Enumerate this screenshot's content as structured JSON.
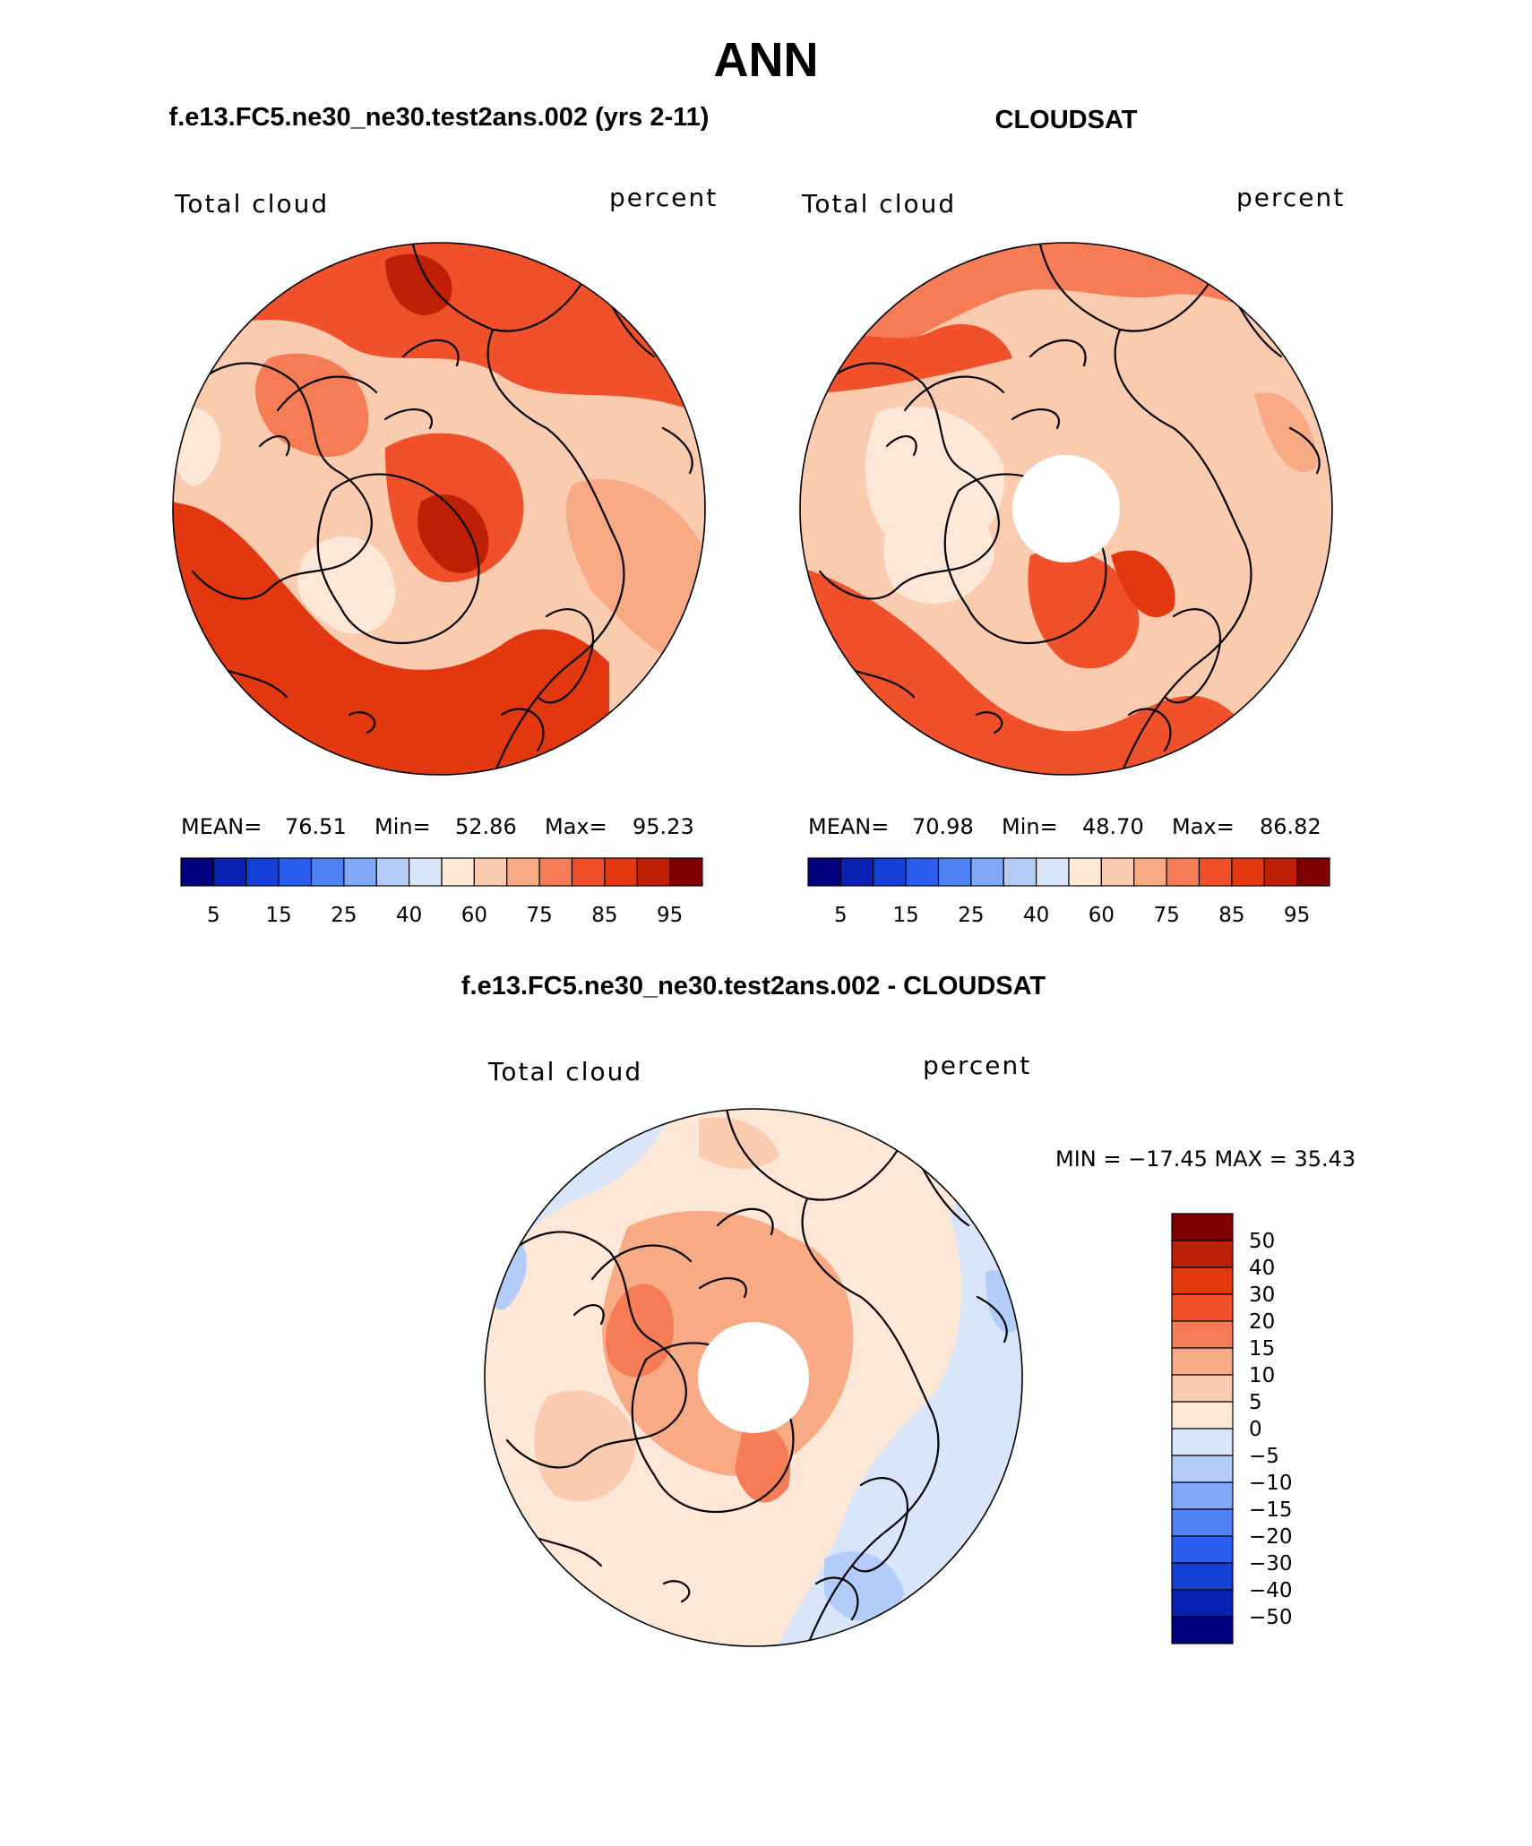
{
  "title": "ANN",
  "panels": [
    {
      "case_name": "f.e13.FC5.ne30_ne30.test2ans.002 (yrs 2-11)",
      "field": "Total cloud",
      "units": "percent",
      "mean_label": "MEAN=",
      "mean_value": "76.51",
      "min_label": "Min=",
      "min_value": "52.86",
      "max_label": "Max=",
      "max_value": "95.23",
      "polar_hole": false,
      "colorbar_ticks": [
        "5",
        "15",
        "25",
        "40",
        "60",
        "75",
        "85",
        "95"
      ]
    },
    {
      "case_name": "CLOUDSAT",
      "field": "Total cloud",
      "units": "percent",
      "mean_label": "MEAN=",
      "mean_value": "70.98",
      "min_label": "Min=",
      "min_value": "48.70",
      "max_label": "Max=",
      "max_value": "86.82",
      "polar_hole": true,
      "colorbar_ticks": [
        "5",
        "15",
        "25",
        "40",
        "60",
        "75",
        "85",
        "95"
      ]
    }
  ],
  "diff_panel": {
    "title": "f.e13.FC5.ne30_ne30.test2ans.002 - CLOUDSAT",
    "field": "Total cloud",
    "units": "percent",
    "min_max_text": "MIN = −17.45 MAX =   35.43",
    "polar_hole": true,
    "colorbar_labels": [
      "50",
      "40",
      "30",
      "20",
      "15",
      "10",
      "5",
      "0",
      "−5",
      "−10",
      "−15",
      "−20",
      "−30",
      "−40",
      "−50"
    ]
  },
  "colors": {
    "abs_scale": [
      "#000080",
      "#0a22b4",
      "#1540d8",
      "#2a5ef0",
      "#4f82f5",
      "#80a8f8",
      "#b3ccfa",
      "#d9e6fa",
      "#fde8d8",
      "#fbcbb0",
      "#f8aa85",
      "#f57c55",
      "#f0502a",
      "#e3380f",
      "#bf1f05",
      "#800000"
    ],
    "diff_scale": [
      "#800000",
      "#bf1f05",
      "#e3380f",
      "#f0502a",
      "#f57c55",
      "#f8aa85",
      "#fbcbb0",
      "#fde8d8",
      "#d9e6fa",
      "#b3ccfa",
      "#80a8f8",
      "#4f82f5",
      "#2a5ef0",
      "#1540d8",
      "#0a22b4",
      "#000080"
    ]
  },
  "chart_data": {
    "type": "heatmap",
    "title": "ANN",
    "projection": "north polar stereographic",
    "variable": "Total cloud",
    "units": "percent",
    "abs_contour_levels": [
      5,
      10,
      15,
      20,
      25,
      30,
      40,
      50,
      60,
      70,
      75,
      80,
      85,
      90,
      95
    ],
    "diff_contour_levels": [
      -50,
      -40,
      -30,
      -20,
      -15,
      -10,
      -5,
      0,
      5,
      10,
      15,
      20,
      30,
      40,
      50
    ],
    "series": [
      {
        "name": "f.e13.FC5.ne30_ne30.test2ans.002 (yrs 2-11)",
        "mean": 76.51,
        "min": 52.86,
        "max": 95.23
      },
      {
        "name": "CLOUDSAT",
        "mean": 70.98,
        "min": 48.7,
        "max": 86.82
      },
      {
        "name": "f.e13.FC5.ne30_ne30.test2ans.002 - CLOUDSAT",
        "min": -17.45,
        "max": 35.43
      }
    ]
  }
}
